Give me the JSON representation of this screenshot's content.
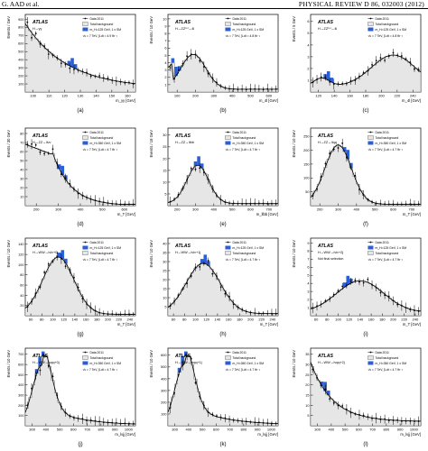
{
  "header": {
    "left": "G. AAD et al.",
    "right": "PHYSICAL REVIEW D 86, 032003 (2012)"
  },
  "colors": {
    "background_fill": "#e6e6e6",
    "signal_fill": "#2b5fd9",
    "curve": "#000000"
  },
  "panels": [
    {
      "caption": "(a)",
      "atlas": "ATLAS",
      "channel": "H→γγ",
      "ylabel": "Events / GeV",
      "xlabel": "m_γγ [GeV]",
      "xticks": [
        "100",
        "110",
        "120",
        "130",
        "140",
        "150",
        "160"
      ],
      "yticks": [
        "100",
        "200",
        "300",
        "400",
        "500",
        "600",
        "700",
        "800",
        "900"
      ],
      "legend": [
        "Data 2011",
        "Total background",
        "m_H=125 GeV, 1 x SM",
        "√s = 7 TeV, ∫Ldt = 4.9 fb⁻¹"
      ],
      "chart_data": {
        "type": "scatter",
        "shape": "falling",
        "xlim": [
          100,
          160
        ],
        "ylim": [
          0,
          900
        ],
        "signal_peak": 125
      }
    },
    {
      "caption": "(b)",
      "atlas": "ATLAS",
      "channel": "H→ZZ⁽*⁾→4l",
      "ylabel": "Events / 10 GeV",
      "xlabel": "m_4l [GeV]",
      "xticks": [
        "100",
        "200",
        "300",
        "400",
        "500",
        "600"
      ],
      "yticks": [
        "1",
        "2",
        "3",
        "4",
        "5",
        "6",
        "7",
        "8",
        "9",
        "10"
      ],
      "legend": [
        "Data 2011",
        "Total background",
        "m_H=125 GeV, 1 x SM",
        "√s = 7 TeV, ∫Ldt = 4.8 fb⁻¹"
      ],
      "chart_data": {
        "type": "scatter",
        "shape": "zz",
        "xlim": [
          80,
          650
        ],
        "ylim": [
          0,
          10
        ],
        "signal_peak": 125
      }
    },
    {
      "caption": "(c)",
      "atlas": "ATLAS",
      "channel": "H→ZZ⁽*⁾→4l",
      "ylabel": "Events / 5 GeV",
      "xlabel": "m_4l [GeV]",
      "xticks": [
        "120",
        "140",
        "160",
        "180",
        "200",
        "220",
        "240"
      ],
      "yticks": [
        "1",
        "2",
        "3",
        "4",
        "5",
        "6"
      ],
      "legend": [
        "Data 2011",
        "Total background",
        "m_H=125 GeV, 1 x SM",
        "√s = 7 TeV, ∫Ldt = 4.8 fb⁻¹"
      ],
      "chart_data": {
        "type": "scatter",
        "shape": "zzlow",
        "xlim": [
          100,
          250
        ],
        "ylim": [
          0,
          6
        ],
        "signal_peak": 125
      }
    },
    {
      "caption": "(d)",
      "atlas": "ATLAS",
      "channel": "H→ZZ→llνν",
      "ylabel": "Events / 30 GeV",
      "xlabel": "m_T [GeV]",
      "xticks": [
        "200",
        "300",
        "400",
        "500",
        "600"
      ],
      "yticks": [
        "10",
        "20",
        "30",
        "40",
        "50",
        "60",
        "70",
        "80"
      ],
      "legend": [
        "Data 2011",
        "Total background",
        "m_H=350 GeV, 1 x SM",
        "√s = 7 TeV, ∫Ldt = 4.7 fb⁻¹"
      ],
      "chart_data": {
        "type": "scatter",
        "shape": "llvv",
        "xlim": [
          180,
          650
        ],
        "ylim": [
          0,
          80
        ],
        "signal_peak": 330
      }
    },
    {
      "caption": "(e)",
      "atlas": "ATLAS",
      "channel": "H→ZZ→llbb",
      "ylabel": "Events / 18 GeV",
      "xlabel": "m_llbb [GeV]",
      "xticks": [
        "200",
        "300",
        "400",
        "500",
        "600",
        "700"
      ],
      "yticks": [
        "5",
        "10",
        "15",
        "20",
        "25",
        "30"
      ],
      "legend": [
        "Data 2011",
        "Total background",
        "m_H=350 GeV, 1 x SM",
        "√s = 7 TeV, ∫Ldt = 4.7 fb⁻¹"
      ],
      "chart_data": {
        "type": "scatter",
        "shape": "llbb",
        "xlim": [
          200,
          750
        ],
        "ylim": [
          0,
          30
        ],
        "signal_peak": 350
      }
    },
    {
      "caption": "(f)",
      "atlas": "ATLAS",
      "channel": "H→ZZ→llqq",
      "ylabel": "Events / 10 GeV",
      "xlabel": "m_T [GeV]",
      "xticks": [
        "200",
        "300",
        "400",
        "500",
        "600",
        "700"
      ],
      "yticks": [
        "50",
        "100",
        "150",
        "200",
        "250"
      ],
      "legend": [
        "Data 2011",
        "Total background",
        "m_H=350 GeV, 1 x SM",
        "√s = 7 TeV, ∫Ldt = 4.7 fb⁻¹"
      ],
      "chart_data": {
        "type": "scatter",
        "shape": "llqq",
        "xlim": [
          150,
          750
        ],
        "ylim": [
          0,
          280
        ],
        "signal_peak": 350
      }
    },
    {
      "caption": "(g)",
      "atlas": "ATLAS",
      "channel": "H→WW→lνlν+0j",
      "ylabel": "Events / 10 GeV",
      "xlabel": "m_T [GeV]",
      "xticks": [
        "60",
        "80",
        "100",
        "120",
        "140",
        "160",
        "180",
        "200",
        "220",
        "240"
      ],
      "yticks": [
        "20",
        "40",
        "60",
        "80",
        "100",
        "120",
        "140"
      ],
      "legend": [
        "Data 2011",
        "m_H=125 GeV, 1 x SM",
        "Total background",
        "√s = 7 TeV, ∫Ldt = 4.7 fb⁻¹"
      ],
      "chart_data": {
        "type": "scatter",
        "shape": "ww0",
        "xlim": [
          60,
          250
        ],
        "ylim": [
          0,
          150
        ],
        "signal_peak": 120
      }
    },
    {
      "caption": "(h)",
      "atlas": "ATLAS",
      "channel": "H→WW→lνlν+1j",
      "ylabel": "Events / 10 GeV",
      "xlabel": "m_T [GeV]",
      "xticks": [
        "60",
        "80",
        "100",
        "120",
        "140",
        "160",
        "180",
        "200",
        "220",
        "240"
      ],
      "yticks": [
        "5",
        "10",
        "15",
        "20",
        "25",
        "30",
        "35",
        "40"
      ],
      "legend": [
        "Data 2011",
        "m_H=125 GeV, 1 x SM",
        "Total background",
        "√s = 7 TeV, ∫Ldt = 4.7 fb⁻¹"
      ],
      "chart_data": {
        "type": "scatter",
        "shape": "ww1",
        "xlim": [
          60,
          250
        ],
        "ylim": [
          0,
          45
        ],
        "signal_peak": 120
      }
    },
    {
      "caption": "(i)",
      "atlas": "ATLAS",
      "channel": "H→WW→lνlν+2j",
      "ylabel": "Events / 10 GeV",
      "xlabel": "m_T [GeV]",
      "xticks": [
        "60",
        "80",
        "100",
        "120",
        "140",
        "160",
        "180",
        "200",
        "220",
        "240"
      ],
      "yticks": [
        "1",
        "2",
        "3",
        "4",
        "5",
        "6",
        "7",
        "8",
        "9"
      ],
      "legend": [
        "Data 2011",
        "m_H=125 GeV, 1 x SM",
        "Total background",
        "√s = 7 TeV, ∫Ldt = 4.7 fb⁻¹"
      ],
      "note": "Not final selection",
      "chart_data": {
        "type": "scatter",
        "shape": "ww2",
        "xlim": [
          60,
          250
        ],
        "ylim": [
          0,
          9
        ],
        "signal_peak": 120
      }
    },
    {
      "caption": "(j)",
      "atlas": "ATLAS",
      "channel": "H→WW→lνqq+0j",
      "ylabel": "Events / 10 GeV",
      "xlabel": "m_lνjj [GeV]",
      "xticks": [
        "300",
        "400",
        "500",
        "600",
        "700",
        "800",
        "900",
        "1000"
      ],
      "yticks": [
        "100",
        "200",
        "300",
        "400",
        "500",
        "600",
        "700"
      ],
      "legend": [
        "Data 2011",
        "Total background",
        "m_H=350 GeV, 1 x SM",
        "√s = 7 TeV, ∫Ldt = 4.7 fb⁻¹"
      ],
      "chart_data": {
        "type": "scatter",
        "shape": "lvqq0",
        "xlim": [
          250,
          1050
        ],
        "ylim": [
          0,
          750
        ],
        "signal_peak": 350
      }
    },
    {
      "caption": "(k)",
      "atlas": "ATLAS",
      "channel": "H→WW→lνqq+1j",
      "ylabel": "Events / 10 GeV",
      "xlabel": "m_lνjj [GeV]",
      "xticks": [
        "300",
        "400",
        "500",
        "600",
        "700",
        "800",
        "900",
        "1000"
      ],
      "yticks": [
        "100",
        "200",
        "300",
        "400",
        "500",
        "600"
      ],
      "legend": [
        "Data 2011",
        "Total background",
        "m_H=350 GeV, 1 x SM",
        "√s = 7 TeV, ∫Ldt = 4.7 fb⁻¹"
      ],
      "chart_data": {
        "type": "scatter",
        "shape": "lvqq1",
        "xlim": [
          250,
          1050
        ],
        "ylim": [
          0,
          650
        ],
        "signal_peak": 350
      }
    },
    {
      "caption": "(l)",
      "atlas": "ATLAS",
      "channel": "H→WW→lνqq+2j",
      "ylabel": "Events / 10 GeV",
      "xlabel": "m_lνjj [GeV]",
      "xticks": [
        "300",
        "400",
        "500",
        "600",
        "700",
        "800",
        "900",
        "1000"
      ],
      "yticks": [
        "5",
        "10",
        "15",
        "20",
        "25",
        "30",
        "35"
      ],
      "legend": [
        "Data 2011",
        "Total background",
        "m_H=350 GeV, 1 x SM",
        "√s = 7 TeV, ∫Ldt = 4.7 fb⁻¹"
      ],
      "chart_data": {
        "type": "scatter",
        "shape": "lvqq2",
        "xlim": [
          250,
          1050
        ],
        "ylim": [
          0,
          40
        ],
        "signal_peak": 350
      }
    }
  ]
}
